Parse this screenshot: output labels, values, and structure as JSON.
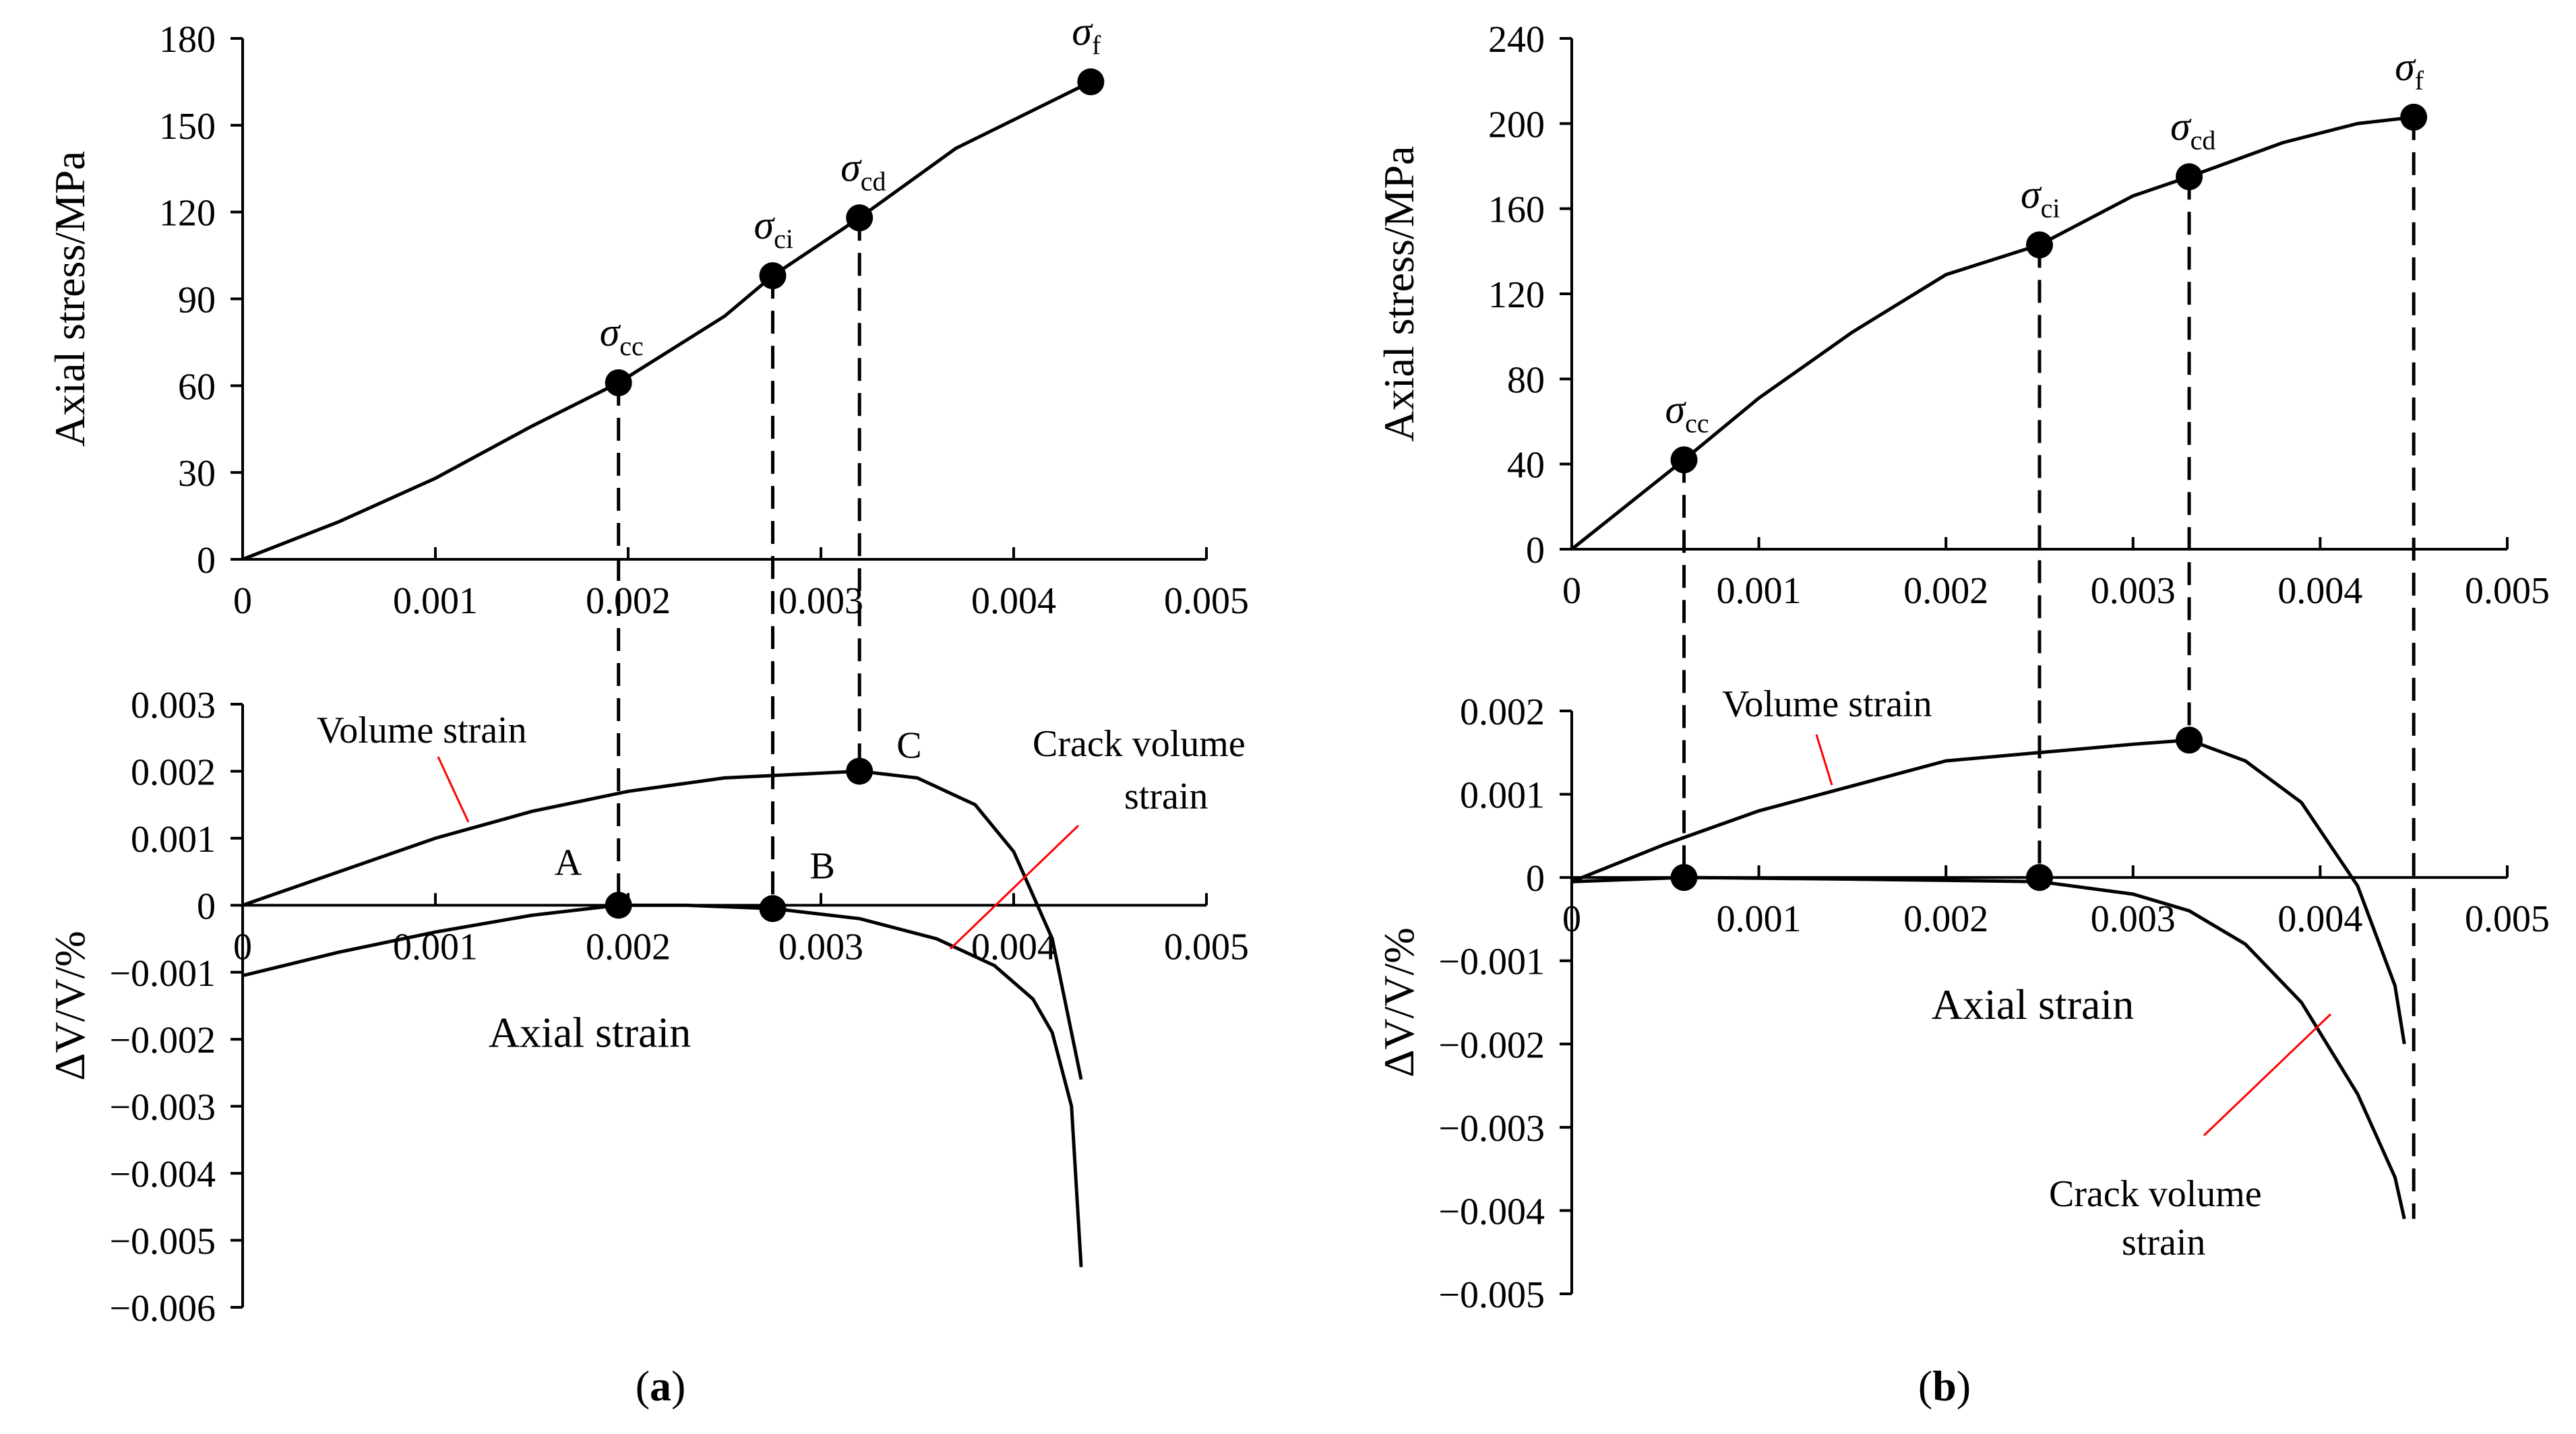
{
  "chart_data": [
    {
      "panel_label": "a",
      "subplots": [
        {
          "type": "line",
          "ylabel": "Axial stress/MPa",
          "xlim": [
            0,
            0.005
          ],
          "ylim": [
            0,
            180
          ],
          "xticks": [
            "0",
            "0.001",
            "0.002",
            "0.003",
            "0.004",
            "0.005"
          ],
          "yticks": [
            "0",
            "30",
            "60",
            "90",
            "120",
            "150",
            "180"
          ],
          "series": [
            {
              "x": [
                0,
                0.0005,
                0.001,
                0.0015,
                0.00195,
                0.0025,
                0.00275,
                0.0032,
                0.0037,
                0.0044
              ],
              "y": [
                0,
                13,
                28,
                46,
                61,
                84,
                98,
                118,
                142,
                165
              ]
            }
          ],
          "points": [
            {
              "label": "σ",
              "sub": "cc",
              "x": 0.00195,
              "y": 61
            },
            {
              "label": "σ",
              "sub": "ci",
              "x": 0.00275,
              "y": 98
            },
            {
              "label": "σ",
              "sub": "cd",
              "x": 0.0032,
              "y": 118
            },
            {
              "label": "σ",
              "sub": "f",
              "x": 0.0044,
              "y": 165
            }
          ]
        },
        {
          "type": "line",
          "xlabel": "Axial strain",
          "ylabel": "ΔV/V/%",
          "xlim": [
            0,
            0.005
          ],
          "ylim": [
            -0.006,
            0.003
          ],
          "xticks": [
            "0",
            "0.001",
            "0.002",
            "0.003",
            "0.004",
            "0.005"
          ],
          "yticks": [
            "0.003",
            "0.002",
            "0.001",
            "0",
            "-0.001",
            "-0.002",
            "-0.003",
            "-0.004",
            "-0.005",
            "-0.006"
          ],
          "series": [
            {
              "name": "Volume strain",
              "x": [
                0,
                0.0005,
                0.001,
                0.0015,
                0.002,
                0.0025,
                0.0032,
                0.0035,
                0.0038,
                0.004,
                0.0042,
                0.00435
              ],
              "y": [
                0,
                0.0005,
                0.001,
                0.0014,
                0.0017,
                0.0019,
                0.002,
                0.0019,
                0.0015,
                0.0008,
                -0.0005,
                -0.0026
              ]
            },
            {
              "name": "Crack volume strain",
              "x": [
                0,
                0.0005,
                0.001,
                0.0015,
                0.00195,
                0.0023,
                0.00275,
                0.0032,
                0.0036,
                0.0039,
                0.0041,
                0.0042,
                0.0043,
                0.00435
              ],
              "y": [
                -0.00105,
                -0.0007,
                -0.0004,
                -0.00015,
                0,
                0,
                -5e-05,
                -0.0002,
                -0.0005,
                -0.0009,
                -0.0014,
                -0.0019,
                -0.003,
                -0.0054
              ]
            }
          ],
          "points": [
            {
              "label": "A",
              "x": 0.00195,
              "y": 0
            },
            {
              "label": "B",
              "x": 0.00275,
              "y": -5e-05
            },
            {
              "label": "C",
              "x": 0.0032,
              "y": 0.002
            }
          ]
        }
      ]
    },
    {
      "panel_label": "b",
      "subplots": [
        {
          "type": "line",
          "ylabel": "Axial stress/MPa",
          "xlim": [
            0,
            0.005
          ],
          "ylim": [
            0,
            240
          ],
          "xticks": [
            "0",
            "0.001",
            "0.002",
            "0.003",
            "0.004",
            "0.005"
          ],
          "yticks": [
            "0",
            "40",
            "80",
            "120",
            "160",
            "200",
            "240"
          ],
          "series": [
            {
              "x": [
                0,
                0.0006,
                0.001,
                0.0015,
                0.002,
                0.0025,
                0.003,
                0.0033,
                0.0038,
                0.0042,
                0.0045
              ],
              "y": [
                0,
                42,
                71,
                102,
                129,
                143,
                166,
                175,
                191,
                200,
                203
              ]
            }
          ],
          "points": [
            {
              "label": "σ",
              "sub": "cc",
              "x": 0.0006,
              "y": 42
            },
            {
              "label": "σ",
              "sub": "ci",
              "x": 0.0025,
              "y": 143
            },
            {
              "label": "σ",
              "sub": "cd",
              "x": 0.0033,
              "y": 175
            },
            {
              "label": "σ",
              "sub": "f",
              "x": 0.0045,
              "y": 203
            }
          ]
        },
        {
          "type": "line",
          "xlabel": "Axial strain",
          "ylabel": "ΔV/V/%",
          "xlim": [
            0,
            0.005
          ],
          "ylim": [
            -0.005,
            0.002
          ],
          "xticks": [
            "0",
            "0.001",
            "0.002",
            "0.003",
            "0.004",
            "0.005"
          ],
          "yticks": [
            "0.002",
            "0.001",
            "0",
            "-0.001",
            "-0.002",
            "-0.003",
            "-0.004",
            "-0.005"
          ],
          "series": [
            {
              "name": "Volume strain",
              "x": [
                0,
                0.0005,
                0.001,
                0.0015,
                0.002,
                0.0025,
                0.003,
                0.0033,
                0.0036,
                0.0039,
                0.0042,
                0.0044,
                0.00445
              ],
              "y": [
                -5e-05,
                0.0004,
                0.0008,
                0.0011,
                0.0014,
                0.0015,
                0.0016,
                0.00165,
                0.0014,
                0.0009,
                -0.0001,
                -0.0013,
                -0.002
              ]
            },
            {
              "name": "Crack volume strain",
              "x": [
                0,
                0.0006,
                0.0015,
                0.0025,
                0.003,
                0.0033,
                0.0036,
                0.0039,
                0.0042,
                0.0044,
                0.00445
              ],
              "y": [
                -5e-05,
                0,
                -2e-05,
                -5e-05,
                -0.0002,
                -0.0004,
                -0.0008,
                -0.0015,
                -0.0026,
                -0.0036,
                -0.0041
              ]
            }
          ],
          "points": [
            {
              "x": 0.0006,
              "y": 0
            },
            {
              "x": 0.0025,
              "y": 0
            },
            {
              "x": 0.0033,
              "y": 0.00165
            }
          ]
        }
      ]
    }
  ],
  "annotations": {
    "a_volume": "Volume strain",
    "a_crack_1": "Crack volume",
    "a_crack_2": "strain",
    "b_volume": "Volume strain",
    "b_crack_1": "Crack volume",
    "b_crack_2": "strain"
  },
  "captions": {
    "a": "a",
    "b": "b"
  }
}
